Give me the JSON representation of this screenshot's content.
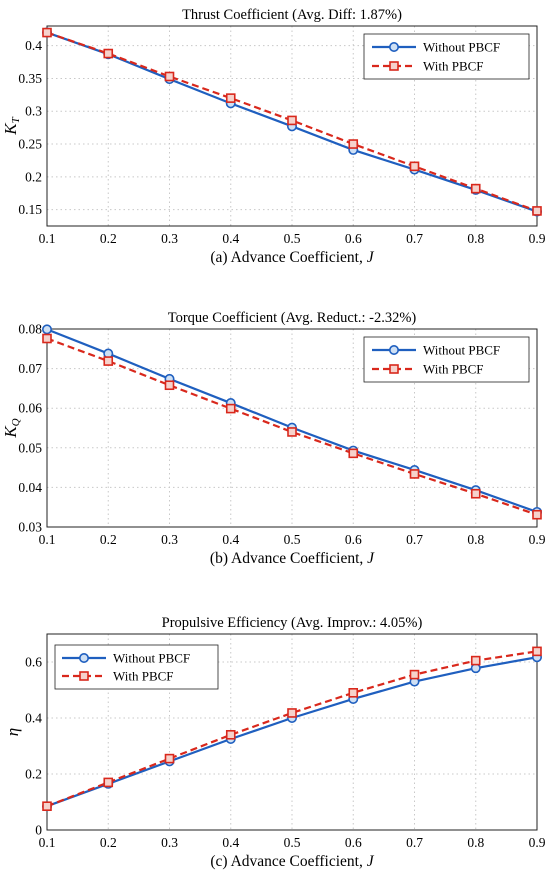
{
  "colors": {
    "without": "#1f5fbf",
    "with": "#d9281c"
  },
  "chart_data": [
    {
      "type": "line",
      "title": "Thrust Coefficient (Avg. Diff: 1.87%)",
      "xlabel_prefix": "(a) Advance Coefficient, ",
      "xlabel_var": "J",
      "ylabel_main": "K",
      "ylabel_sub": "T",
      "x": [
        0.1,
        0.2,
        0.3,
        0.4,
        0.5,
        0.6,
        0.7,
        0.8,
        0.9
      ],
      "xlim": [
        0.1,
        0.9
      ],
      "ylim": [
        0.125,
        0.43
      ],
      "xticks": [
        "0.1",
        "0.2",
        "0.3",
        "0.4",
        "0.5",
        "0.6",
        "0.7",
        "0.8",
        "0.9"
      ],
      "yticks": [
        0.15,
        0.2,
        0.25,
        0.3,
        0.35,
        0.4
      ],
      "ytick_labels": [
        "0.15",
        "0.2",
        "0.25",
        "0.3",
        "0.35",
        "0.4"
      ],
      "grid": true,
      "legend_position": "top-right",
      "series": [
        {
          "name": "Without PBCF",
          "values": [
            0.42,
            0.387,
            0.349,
            0.312,
            0.277,
            0.241,
            0.211,
            0.18,
            0.147
          ]
        },
        {
          "name": "With PBCF",
          "values": [
            0.42,
            0.388,
            0.353,
            0.32,
            0.286,
            0.25,
            0.216,
            0.182,
            0.148
          ]
        }
      ]
    },
    {
      "type": "line",
      "title": "Torque Coefficient (Avg. Reduct.: -2.32%)",
      "xlabel_prefix": "(b) Advance Coefficient, ",
      "xlabel_var": "J",
      "ylabel_main": "K",
      "ylabel_sub": "Q",
      "x": [
        0.1,
        0.2,
        0.3,
        0.4,
        0.5,
        0.6,
        0.7,
        0.8,
        0.9
      ],
      "xlim": [
        0.1,
        0.9
      ],
      "ylim": [
        0.03,
        0.08
      ],
      "xticks": [
        "0.1",
        "0.2",
        "0.3",
        "0.4",
        "0.5",
        "0.6",
        "0.7",
        "0.8",
        "0.9"
      ],
      "yticks": [
        0.03,
        0.04,
        0.05,
        0.06,
        0.07,
        0.08
      ],
      "ytick_labels": [
        "0.03",
        "0.04",
        "0.05",
        "0.06",
        "0.07",
        "0.08"
      ],
      "grid": true,
      "legend_position": "top-right",
      "series": [
        {
          "name": "Without PBCF",
          "values": [
            0.0799,
            0.0738,
            0.0674,
            0.0613,
            0.0551,
            0.0493,
            0.0444,
            0.0393,
            0.0338
          ]
        },
        {
          "name": "With PBCF",
          "values": [
            0.0776,
            0.0719,
            0.0658,
            0.0599,
            0.054,
            0.0486,
            0.0434,
            0.0384,
            0.0331
          ]
        }
      ]
    },
    {
      "type": "line",
      "title": "Propulsive Efficiency (Avg. Improv.: 4.05%)",
      "xlabel_prefix": "(c) Advance Coefficient, ",
      "xlabel_var": "J",
      "ylabel_main": "η",
      "ylabel_sub": "",
      "x": [
        0.1,
        0.2,
        0.3,
        0.4,
        0.5,
        0.6,
        0.7,
        0.8,
        0.9
      ],
      "xlim": [
        0.1,
        0.9
      ],
      "ylim": [
        0,
        0.7
      ],
      "xticks": [
        "0.1",
        "0.2",
        "0.3",
        "0.4",
        "0.5",
        "0.6",
        "0.7",
        "0.8",
        "0.9"
      ],
      "yticks": [
        0,
        0.2,
        0.4,
        0.6
      ],
      "ytick_labels": [
        "0",
        "0.2",
        "0.4",
        "0.6"
      ],
      "grid": true,
      "legend_position": "top-left",
      "series": [
        {
          "name": "Without PBCF",
          "values": [
            0.085,
            0.165,
            0.245,
            0.325,
            0.4,
            0.468,
            0.53,
            0.578,
            0.617
          ]
        },
        {
          "name": "With PBCF",
          "values": [
            0.085,
            0.17,
            0.255,
            0.34,
            0.418,
            0.49,
            0.555,
            0.605,
            0.638
          ]
        }
      ]
    }
  ]
}
